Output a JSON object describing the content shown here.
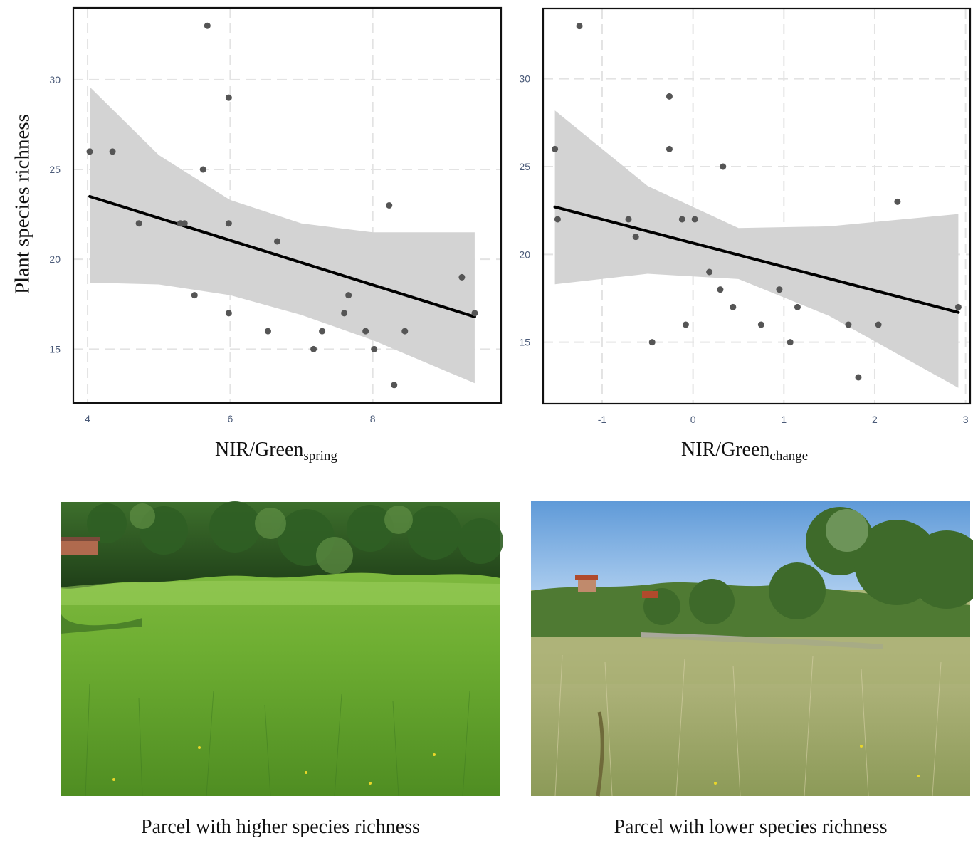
{
  "figure": {
    "ylabel": "Plant species richness",
    "left_xlabel": {
      "main": "NIR/Green",
      "sub": "spring"
    },
    "right_xlabel": {
      "main": "NIR/Green",
      "sub": "change"
    },
    "captions": {
      "left_photo": "Parcel with higher species richness",
      "right_photo": "Parcel with lower species richness"
    }
  },
  "colors": {
    "points": "#555555",
    "fit_line": "#000000",
    "confidence_band": "#d3d3d3",
    "grid": "#e3e3e3",
    "tick_text": "#4a5a78"
  },
  "chart_data": [
    {
      "type": "scatter",
      "xlabel": "NIR/Green spring",
      "ylabel": "Plant species richness",
      "xlim": [
        3.8,
        9.8
      ],
      "ylim": [
        12,
        34
      ],
      "xticks": [
        4,
        6,
        8
      ],
      "yticks": [
        15,
        20,
        25,
        30
      ],
      "grid": true,
      "points": [
        {
          "x": 4.03,
          "y": 26
        },
        {
          "x": 4.35,
          "y": 26
        },
        {
          "x": 4.72,
          "y": 22
        },
        {
          "x": 5.3,
          "y": 22
        },
        {
          "x": 5.36,
          "y": 22
        },
        {
          "x": 5.5,
          "y": 18
        },
        {
          "x": 5.62,
          "y": 25
        },
        {
          "x": 5.68,
          "y": 33
        },
        {
          "x": 5.98,
          "y": 29
        },
        {
          "x": 5.98,
          "y": 22
        },
        {
          "x": 5.98,
          "y": 17
        },
        {
          "x": 6.53,
          "y": 16
        },
        {
          "x": 6.66,
          "y": 21
        },
        {
          "x": 7.17,
          "y": 15
        },
        {
          "x": 7.29,
          "y": 16
        },
        {
          "x": 7.6,
          "y": 17
        },
        {
          "x": 7.66,
          "y": 18
        },
        {
          "x": 7.9,
          "y": 16
        },
        {
          "x": 8.02,
          "y": 15
        },
        {
          "x": 8.23,
          "y": 23
        },
        {
          "x": 8.3,
          "y": 13
        },
        {
          "x": 8.45,
          "y": 16
        },
        {
          "x": 9.25,
          "y": 19
        },
        {
          "x": 9.43,
          "y": 17
        }
      ],
      "fit": {
        "x": [
          4.03,
          9.43
        ],
        "y": [
          23.5,
          16.8
        ]
      },
      "band": {
        "x": [
          4.03,
          5.0,
          6.0,
          7.0,
          8.0,
          9.43
        ],
        "upper": [
          29.6,
          25.8,
          23.3,
          22.0,
          21.5,
          21.5
        ],
        "lower": [
          18.7,
          18.6,
          18.0,
          16.9,
          15.5,
          13.1
        ]
      }
    },
    {
      "type": "scatter",
      "xlabel": "NIR/Green change",
      "ylabel": "Plant species richness",
      "xlim": [
        -1.65,
        3.05
      ],
      "ylim": [
        11.5,
        34
      ],
      "xticks": [
        -1,
        0,
        1,
        2,
        3
      ],
      "yticks": [
        15,
        20,
        25,
        30
      ],
      "grid": true,
      "points": [
        {
          "x": -1.52,
          "y": 26
        },
        {
          "x": -1.49,
          "y": 22
        },
        {
          "x": -1.25,
          "y": 33
        },
        {
          "x": -0.71,
          "y": 22
        },
        {
          "x": -0.63,
          "y": 21
        },
        {
          "x": -0.45,
          "y": 15
        },
        {
          "x": -0.26,
          "y": 29
        },
        {
          "x": -0.26,
          "y": 26
        },
        {
          "x": -0.12,
          "y": 22
        },
        {
          "x": -0.08,
          "y": 16
        },
        {
          "x": 0.02,
          "y": 22
        },
        {
          "x": 0.18,
          "y": 19
        },
        {
          "x": 0.3,
          "y": 18
        },
        {
          "x": 0.33,
          "y": 25
        },
        {
          "x": 0.44,
          "y": 17
        },
        {
          "x": 0.75,
          "y": 16
        },
        {
          "x": 0.95,
          "y": 18
        },
        {
          "x": 1.07,
          "y": 15
        },
        {
          "x": 1.15,
          "y": 17
        },
        {
          "x": 1.71,
          "y": 16
        },
        {
          "x": 1.82,
          "y": 13
        },
        {
          "x": 2.04,
          "y": 16
        },
        {
          "x": 2.25,
          "y": 23
        },
        {
          "x": 2.92,
          "y": 17
        }
      ],
      "fit": {
        "x": [
          -1.52,
          2.92
        ],
        "y": [
          22.7,
          16.7
        ]
      },
      "band": {
        "x": [
          -1.52,
          -0.5,
          0.5,
          1.5,
          2.92
        ],
        "upper": [
          28.2,
          23.9,
          21.5,
          21.6,
          22.3
        ],
        "lower": [
          18.3,
          18.9,
          18.6,
          16.5,
          12.4
        ]
      }
    }
  ]
}
